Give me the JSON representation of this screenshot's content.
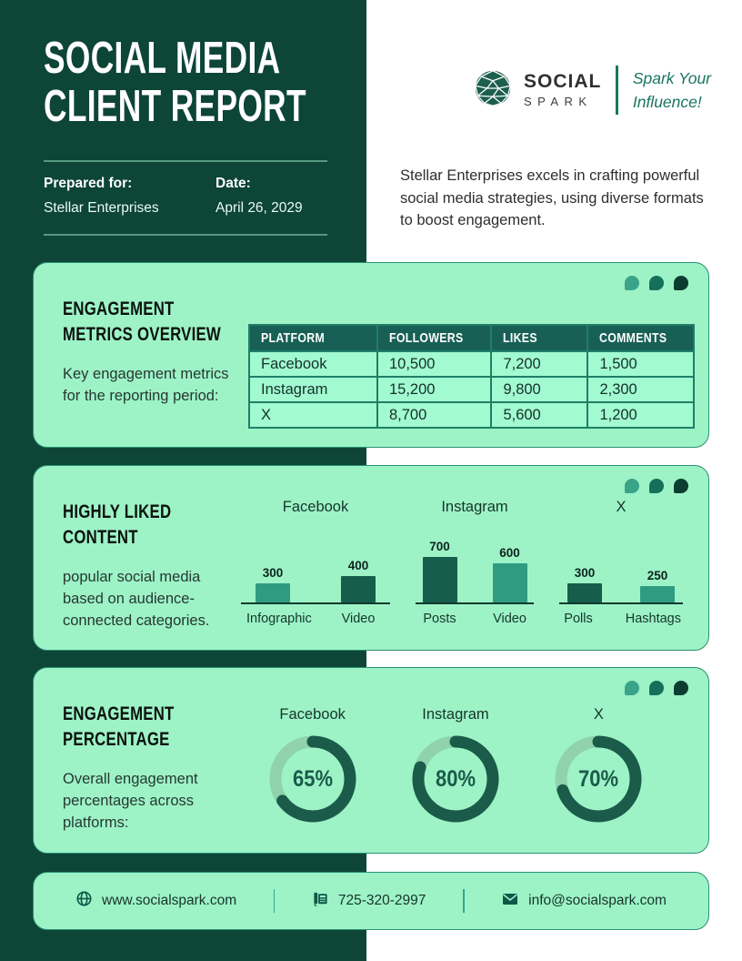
{
  "header": {
    "title_line1": "SOCIAL MEDIA",
    "title_line2": "CLIENT REPORT",
    "prepared_label": "Prepared for:",
    "prepared_value": "Stellar Enterprises",
    "date_label": "Date:",
    "date_value": "April 26, 2029",
    "brand_name_top": "SOCIAL",
    "brand_name_bottom": "SPARK",
    "tagline_line1": "Spark Your",
    "tagline_line2": "Influence!",
    "intro": "Stellar Enterprises excels in crafting powerful social media strategies, using diverse formats to boost engagement."
  },
  "cards": {
    "metrics": {
      "title_line1": "ENGAGEMENT",
      "title_line2": "METRICS OVERVIEW",
      "description": "Key engagement metrics for the reporting period:"
    },
    "content": {
      "title_line1": "HIGHLY LIKED",
      "title_line2": "CONTENT",
      "description": "popular social media based on audience-connected categories."
    },
    "engagement": {
      "title_line1": "ENGAGEMENT",
      "title_line2": "PERCENTAGE",
      "description": "Overall engagement percentages across platforms:"
    }
  },
  "chart_data": [
    {
      "type": "table",
      "title": "Engagement Metrics Overview",
      "headers": [
        "PLATFORM",
        "FOLLOWERS",
        "LIKES",
        "COMMENTS"
      ],
      "rows": [
        [
          "Facebook",
          "10,500",
          "7,200",
          "1,500"
        ],
        [
          "Instagram",
          "15,200",
          "9,800",
          "2,300"
        ],
        [
          "X",
          "8,700",
          "5,600",
          "1,200"
        ]
      ]
    },
    {
      "type": "bar",
      "title": "Highly Liked Content",
      "ymax": 700,
      "groups": [
        {
          "platform": "Facebook",
          "categories": [
            "Infographic",
            "Video"
          ],
          "values": [
            300,
            400
          ],
          "colors": [
            "#2f9c81",
            "#175d4c"
          ]
        },
        {
          "platform": "Instagram",
          "categories": [
            "Posts",
            "Video"
          ],
          "values": [
            700,
            600
          ],
          "colors": [
            "#175d4c",
            "#2f9c81"
          ]
        },
        {
          "platform": "X",
          "categories": [
            "Polls",
            "Hashtags"
          ],
          "values": [
            300,
            250
          ],
          "colors": [
            "#175d4c",
            "#2f9c81"
          ]
        }
      ]
    },
    {
      "type": "donut",
      "title": "Engagement Percentage",
      "items": [
        {
          "platform": "Facebook",
          "value_pct": 65,
          "label": "65%"
        },
        {
          "platform": "Instagram",
          "value_pct": 80,
          "label": "80%"
        },
        {
          "platform": "X",
          "value_pct": 70,
          "label": "70%"
        }
      ]
    }
  ],
  "footer": {
    "website": "www.socialspark.com",
    "phone": "725-320-2997",
    "email": "info@socialspark.com"
  },
  "colors": {
    "darkPanel": "#0d4537",
    "cardBg": "#9df3c6",
    "cardBorder": "#2a9173",
    "cellBg": "#a2fad0",
    "tableHeaderBg": "#186055",
    "tableBorder": "#1f7f66",
    "tealMid": "#2f9c81",
    "tealDark": "#175d4c",
    "accent": "#1a7560",
    "axis": "#0f392e",
    "donutFill": "#1b5b4a",
    "donutTrack": "#8fd2ab"
  }
}
